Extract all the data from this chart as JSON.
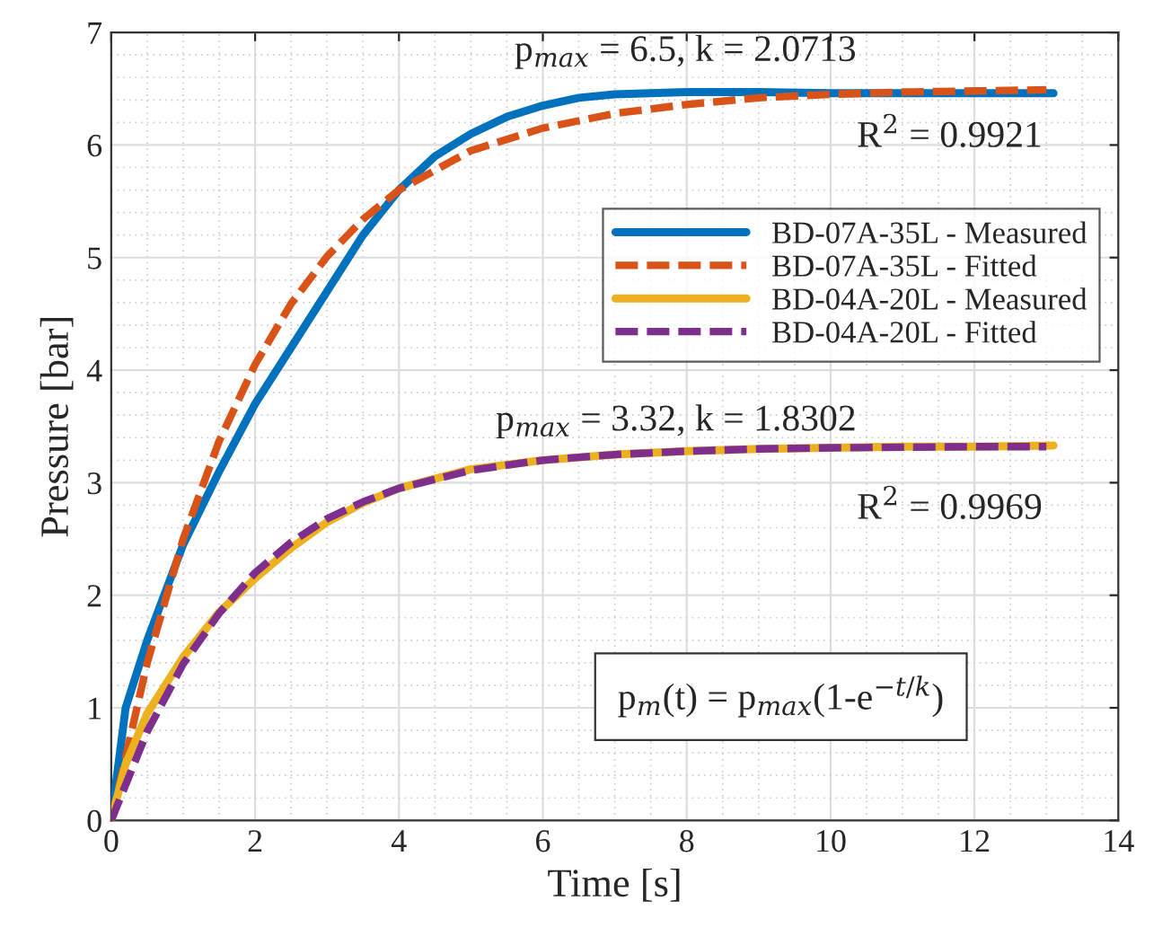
{
  "chart_data": {
    "type": "line",
    "xlabel": "Time [s]",
    "ylabel": "Pressure [bar]",
    "xlim": [
      0,
      14
    ],
    "xticks": [
      0,
      2,
      4,
      6,
      8,
      10,
      12,
      14
    ],
    "ylim": [
      0,
      7
    ],
    "yticks": [
      0,
      1,
      2,
      3,
      4,
      5,
      6,
      7
    ],
    "grid": true,
    "legend": "top right",
    "series": [
      {
        "name": "BD-07A-35L - Measured",
        "color": "#0072bd",
        "line_style": "solid",
        "x": [
          0,
          0.2,
          0.5,
          1,
          1.5,
          2,
          2.5,
          3,
          3.5,
          4,
          4.5,
          5,
          5.5,
          6,
          6.5,
          7,
          8,
          9,
          10,
          11,
          12,
          13,
          13.1
        ],
        "values": [
          0,
          1.0,
          1.6,
          2.45,
          3.1,
          3.7,
          4.2,
          4.7,
          5.2,
          5.6,
          5.9,
          6.1,
          6.25,
          6.35,
          6.42,
          6.45,
          6.47,
          6.47,
          6.46,
          6.46,
          6.46,
          6.46,
          6.46
        ]
      },
      {
        "name": "BD-07A-35L - Fitted",
        "color": "#d95319",
        "line_style": "dashed",
        "x": [
          0,
          0.5,
          1,
          1.5,
          2,
          2.5,
          3,
          3.5,
          4,
          5,
          6,
          7,
          8,
          9,
          10,
          11,
          12,
          13
        ],
        "values": [
          0,
          1.4,
          2.5,
          3.37,
          4.05,
          4.59,
          5.01,
          5.34,
          5.6,
          5.95,
          6.15,
          6.28,
          6.36,
          6.42,
          6.45,
          6.47,
          6.48,
          6.49
        ]
      },
      {
        "name": "BD-04A-20L - Measured",
        "color": "#edb120",
        "line_style": "solid",
        "x": [
          0,
          0.2,
          0.5,
          1,
          1.5,
          2,
          2.5,
          3,
          3.5,
          4,
          5,
          6,
          7,
          8,
          9,
          10,
          11,
          12,
          13.1
        ],
        "values": [
          0,
          0.5,
          0.95,
          1.45,
          1.85,
          2.15,
          2.42,
          2.65,
          2.82,
          2.95,
          3.12,
          3.2,
          3.25,
          3.28,
          3.3,
          3.31,
          3.32,
          3.32,
          3.33
        ]
      },
      {
        "name": "BD-04A-20L - Fitted",
        "color": "#7e2f8e",
        "line_style": "dashed",
        "x": [
          0,
          0.5,
          1,
          1.5,
          2,
          2.5,
          3,
          3.5,
          4,
          5,
          6,
          7,
          8,
          9,
          10,
          12,
          13
        ],
        "values": [
          0,
          0.79,
          1.39,
          1.84,
          2.2,
          2.47,
          2.68,
          2.83,
          2.95,
          3.11,
          3.2,
          3.25,
          3.28,
          3.3,
          3.31,
          3.32,
          3.32
        ]
      }
    ],
    "annotations": [
      "p$_{max}$ = 6.5, k = 2.0713",
      "R$^{2}$ = 0.9921",
      "p$_{max}$ = 3.32, k = 1.8302",
      "R$^{2}$ = 0.9969",
      "p$_{m}$(t) = p$_{max}$(1-e$^{−t/k}$)"
    ]
  }
}
